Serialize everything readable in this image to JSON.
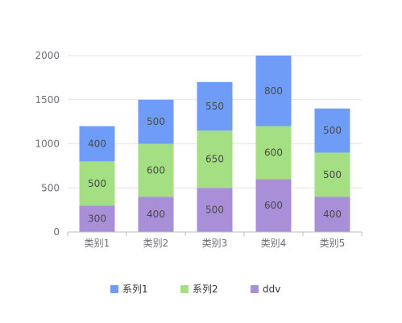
{
  "chart_data": {
    "type": "bar",
    "stacked": true,
    "categories": [
      "类别1",
      "类别2",
      "类别3",
      "类别4",
      "类别5"
    ],
    "series": [
      {
        "name": "ddv",
        "values": [
          300,
          400,
          500,
          600,
          400
        ],
        "color": "#a98fd8"
      },
      {
        "name": "系列2",
        "values": [
          500,
          600,
          650,
          600,
          500
        ],
        "color": "#a4df84"
      },
      {
        "name": "系列1",
        "values": [
          400,
          500,
          550,
          800,
          500
        ],
        "color": "#6e9cf7"
      }
    ],
    "legend_order": [
      "系列1",
      "系列2",
      "ddv"
    ],
    "ylim": [
      0,
      2000
    ],
    "yticks": [
      0,
      500,
      1000,
      1500,
      2000
    ],
    "grid": true,
    "legend_position": "bottom",
    "data_labels": true,
    "axis_color": "#b9bcc3",
    "grid_color": "#e3e4e8"
  }
}
